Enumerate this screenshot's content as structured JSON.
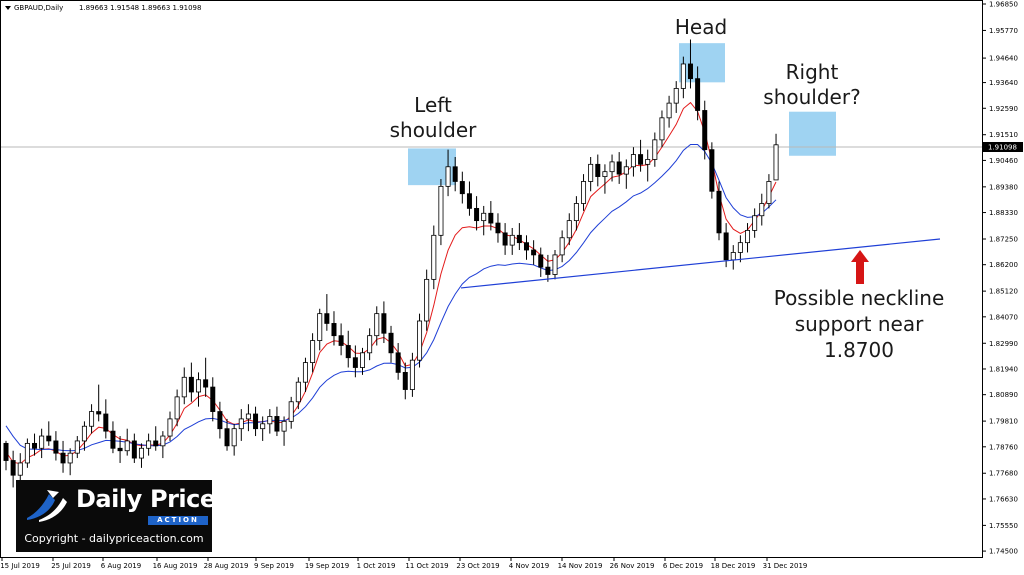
{
  "chart_data": {
    "type": "candlestick",
    "title": "GBPAUD,Daily",
    "ohlc_readout": "1.89663 1.91548 1.89663 1.91098",
    "current_price": 1.91098,
    "current_price_label": "1.91098",
    "ylim": [
      1.7434,
      1.9685
    ],
    "y_tick_labels": [
      "1.96850",
      "1.95770",
      "1.94640",
      "1.93640",
      "1.92590",
      "1.91510",
      "1.90460",
      "1.89380",
      "1.88330",
      "1.87250",
      "1.86200",
      "1.85120",
      "1.84070",
      "1.82990",
      "1.81940",
      "1.80890",
      "1.79810",
      "1.78760",
      "1.77680",
      "1.76630",
      "1.75550",
      "1.74500"
    ],
    "x_tick_labels": [
      "15 Jul 2019",
      "25 Jul 2019",
      "6 Aug 2019",
      "16 Aug 2019",
      "28 Aug 2019",
      "9 Sep 2019",
      "19 Sep 2019",
      "1 Oct 2019",
      "11 Oct 2019",
      "23 Oct 2019",
      "4 Nov 2019",
      "14 Nov 2019",
      "26 Nov 2019",
      "6 Dec 2019",
      "18 Dec 2019",
      "31 Dec 2019"
    ],
    "candles": [
      [
        1.789,
        1.79,
        1.778,
        1.782
      ],
      [
        1.782,
        1.786,
        1.771,
        1.776
      ],
      [
        1.776,
        1.785,
        1.77,
        1.781
      ],
      [
        1.781,
        1.791,
        1.779,
        1.789
      ],
      [
        1.789,
        1.793,
        1.784,
        1.787
      ],
      [
        1.787,
        1.795,
        1.783,
        1.792
      ],
      [
        1.792,
        1.798,
        1.788,
        1.79
      ],
      [
        1.79,
        1.794,
        1.782,
        1.785
      ],
      [
        1.785,
        1.79,
        1.777,
        1.781
      ],
      [
        1.781,
        1.787,
        1.776,
        1.785
      ],
      [
        1.785,
        1.792,
        1.783,
        1.79
      ],
      [
        1.79,
        1.798,
        1.786,
        1.796
      ],
      [
        1.796,
        1.805,
        1.793,
        1.802
      ],
      [
        1.802,
        1.813,
        1.798,
        1.801
      ],
      [
        1.801,
        1.807,
        1.791,
        1.794
      ],
      [
        1.794,
        1.798,
        1.785,
        1.787
      ],
      [
        1.787,
        1.792,
        1.781,
        1.786
      ],
      [
        1.786,
        1.795,
        1.784,
        1.79
      ],
      [
        1.79,
        1.793,
        1.781,
        1.783
      ],
      [
        1.783,
        1.789,
        1.779,
        1.787
      ],
      [
        1.787,
        1.793,
        1.784,
        1.79
      ],
      [
        1.79,
        1.796,
        1.786,
        1.788
      ],
      [
        1.788,
        1.794,
        1.783,
        1.792
      ],
      [
        1.792,
        1.802,
        1.79,
        1.799
      ],
      [
        1.799,
        1.811,
        1.796,
        1.808
      ],
      [
        1.808,
        1.82,
        1.805,
        1.816
      ],
      [
        1.816,
        1.822,
        1.806,
        1.81
      ],
      [
        1.81,
        1.818,
        1.804,
        1.815
      ],
      [
        1.815,
        1.824,
        1.808,
        1.812
      ],
      [
        1.812,
        1.816,
        1.798,
        1.802
      ],
      [
        1.802,
        1.806,
        1.791,
        1.795
      ],
      [
        1.795,
        1.799,
        1.786,
        1.788
      ],
      [
        1.788,
        1.797,
        1.784,
        1.795
      ],
      [
        1.795,
        1.803,
        1.79,
        1.799
      ],
      [
        1.799,
        1.805,
        1.794,
        1.801
      ],
      [
        1.801,
        1.804,
        1.792,
        1.795
      ],
      [
        1.795,
        1.8,
        1.79,
        1.797
      ],
      [
        1.797,
        1.803,
        1.793,
        1.8
      ],
      [
        1.8,
        1.804,
        1.792,
        1.794
      ],
      [
        1.794,
        1.8,
        1.788,
        1.798
      ],
      [
        1.798,
        1.808,
        1.795,
        1.806
      ],
      [
        1.806,
        1.816,
        1.803,
        1.814
      ],
      [
        1.814,
        1.824,
        1.81,
        1.822
      ],
      [
        1.822,
        1.834,
        1.818,
        1.831
      ],
      [
        1.831,
        1.844,
        1.827,
        1.842
      ],
      [
        1.842,
        1.85,
        1.835,
        1.838
      ],
      [
        1.838,
        1.843,
        1.829,
        1.833
      ],
      [
        1.833,
        1.838,
        1.825,
        1.829
      ],
      [
        1.829,
        1.835,
        1.82,
        1.824
      ],
      [
        1.824,
        1.829,
        1.816,
        1.82
      ],
      [
        1.82,
        1.828,
        1.817,
        1.826
      ],
      [
        1.826,
        1.836,
        1.823,
        1.833
      ],
      [
        1.833,
        1.845,
        1.829,
        1.842
      ],
      [
        1.842,
        1.847,
        1.83,
        1.834
      ],
      [
        1.834,
        1.837,
        1.822,
        1.826
      ],
      [
        1.826,
        1.83,
        1.815,
        1.818
      ],
      [
        1.818,
        1.822,
        1.807,
        1.811
      ],
      [
        1.811,
        1.826,
        1.808,
        1.823
      ],
      [
        1.823,
        1.842,
        1.82,
        1.839
      ],
      [
        1.839,
        1.86,
        1.835,
        1.856
      ],
      [
        1.856,
        1.878,
        1.852,
        1.874
      ],
      [
        1.874,
        1.897,
        1.87,
        1.894
      ],
      [
        1.894,
        1.909,
        1.89,
        1.902
      ],
      [
        1.902,
        1.906,
        1.892,
        1.896
      ],
      [
        1.896,
        1.9,
        1.887,
        1.891
      ],
      [
        1.891,
        1.896,
        1.882,
        1.885
      ],
      [
        1.885,
        1.89,
        1.876,
        1.88
      ],
      [
        1.88,
        1.886,
        1.874,
        1.883
      ],
      [
        1.883,
        1.888,
        1.876,
        1.879
      ],
      [
        1.879,
        1.883,
        1.871,
        1.875
      ],
      [
        1.875,
        1.879,
        1.866,
        1.87
      ],
      [
        1.87,
        1.877,
        1.866,
        1.874
      ],
      [
        1.874,
        1.879,
        1.868,
        1.871
      ],
      [
        1.871,
        1.874,
        1.864,
        1.868
      ],
      [
        1.868,
        1.872,
        1.862,
        1.866
      ],
      [
        1.866,
        1.869,
        1.857,
        1.861
      ],
      [
        1.861,
        1.866,
        1.855,
        1.858
      ],
      [
        1.858,
        1.868,
        1.856,
        1.866
      ],
      [
        1.866,
        1.876,
        1.863,
        1.873
      ],
      [
        1.873,
        1.883,
        1.87,
        1.88
      ],
      [
        1.88,
        1.89,
        1.876,
        1.887
      ],
      [
        1.887,
        1.899,
        1.884,
        1.896
      ],
      [
        1.896,
        1.906,
        1.892,
        1.903
      ],
      [
        1.903,
        1.907,
        1.894,
        1.898
      ],
      [
        1.898,
        1.903,
        1.891,
        1.9
      ],
      [
        1.9,
        1.907,
        1.896,
        1.904
      ],
      [
        1.904,
        1.908,
        1.895,
        1.899
      ],
      [
        1.899,
        1.905,
        1.893,
        1.902
      ],
      [
        1.902,
        1.91,
        1.898,
        1.907
      ],
      [
        1.907,
        1.913,
        1.9,
        1.903
      ],
      [
        1.903,
        1.909,
        1.896,
        1.905
      ],
      [
        1.905,
        1.916,
        1.902,
        1.913
      ],
      [
        1.913,
        1.925,
        1.91,
        1.922
      ],
      [
        1.922,
        1.931,
        1.918,
        1.928
      ],
      [
        1.928,
        1.937,
        1.924,
        1.934
      ],
      [
        1.934,
        1.947,
        1.93,
        1.944
      ],
      [
        1.944,
        1.954,
        1.934,
        1.938
      ],
      [
        1.938,
        1.943,
        1.921,
        1.925
      ],
      [
        1.925,
        1.929,
        1.905,
        1.909
      ],
      [
        1.909,
        1.912,
        1.889,
        1.892
      ],
      [
        1.892,
        1.896,
        1.872,
        1.875
      ],
      [
        1.875,
        1.879,
        1.861,
        1.864
      ],
      [
        1.864,
        1.87,
        1.86,
        1.867
      ],
      [
        1.867,
        1.874,
        1.863,
        1.871
      ],
      [
        1.871,
        1.879,
        1.867,
        1.876
      ],
      [
        1.876,
        1.885,
        1.873,
        1.882
      ],
      [
        1.882,
        1.891,
        1.878,
        1.887
      ],
      [
        1.887,
        1.899,
        1.885,
        1.896
      ],
      [
        1.89663,
        1.91548,
        1.89663,
        1.91098
      ]
    ],
    "series": [
      {
        "name": "",
        "color": "#e31b1b",
        "values": [
          1.7855,
          1.7813,
          1.7807,
          1.7831,
          1.7845,
          1.7865,
          1.7868,
          1.7858,
          1.7839,
          1.7841,
          1.7861,
          1.7893,
          1.7932,
          1.7956,
          1.7951,
          1.7926,
          1.7908,
          1.7903,
          1.7886,
          1.788,
          1.7884,
          1.7882,
          1.7891,
          1.7924,
          1.7972,
          1.8033,
          1.8054,
          1.8081,
          1.8088,
          1.8065,
          1.8026,
          1.7981,
          1.7967,
          1.7974,
          1.7986,
          1.7978,
          1.7978,
          1.7984,
          1.7974,
          1.7977,
          1.8002,
          1.8045,
          1.8103,
          1.8177,
          1.8261,
          1.8296,
          1.8309,
          1.8306,
          1.8286,
          1.8259,
          1.8257,
          1.8277,
          1.8315,
          1.8323,
          1.8301,
          1.8262,
          1.8206,
          1.8213,
          1.8261,
          1.8343,
          1.8454,
          1.8582,
          1.8679,
          1.8741,
          1.8771,
          1.8775,
          1.877,
          1.8778,
          1.8778,
          1.8767,
          1.8742,
          1.8736,
          1.8722,
          1.8703,
          1.8685,
          1.8659,
          1.8634,
          1.864,
          1.8669,
          1.8712,
          1.8764,
          1.8832,
          1.8898,
          1.8925,
          1.895,
          1.8977,
          1.8983,
          1.9,
          1.9027,
          1.9024,
          1.9029,
          1.9058,
          1.9101,
          1.9146,
          1.9193,
          1.9258,
          1.9282,
          1.9246,
          1.9162,
          1.9043,
          1.8908,
          1.8806,
          1.8765,
          1.8748,
          1.8762,
          1.88,
          1.8841,
          1.8898,
          1.8958
        ]
      },
      {
        "name": "",
        "color": "#1f3fd6",
        "values": [
          1.7962,
          1.7919,
          1.7882,
          1.7867,
          1.7866,
          1.7865,
          1.7866,
          1.7865,
          1.7861,
          1.786,
          1.7861,
          1.787,
          1.7884,
          1.7893,
          1.7902,
          1.7901,
          1.7899,
          1.7895,
          1.7888,
          1.7884,
          1.788,
          1.788,
          1.7883,
          1.7896,
          1.7918,
          1.7947,
          1.7962,
          1.7978,
          1.799,
          1.7992,
          1.7986,
          1.7974,
          1.7966,
          1.7969,
          1.7974,
          1.7974,
          1.7978,
          1.7985,
          1.7983,
          1.7983,
          1.7993,
          1.8012,
          1.804,
          1.8076,
          1.8119,
          1.8148,
          1.8168,
          1.8181,
          1.8185,
          1.8183,
          1.8183,
          1.819,
          1.8206,
          1.8217,
          1.8218,
          1.8212,
          1.8198,
          1.8201,
          1.8222,
          1.826,
          1.8314,
          1.8383,
          1.8449,
          1.85,
          1.8541,
          1.8568,
          1.8583,
          1.8603,
          1.8614,
          1.862,
          1.8617,
          1.8623,
          1.8626,
          1.8623,
          1.8619,
          1.8607,
          1.8596,
          1.8599,
          1.8613,
          1.8637,
          1.867,
          1.8709,
          1.8751,
          1.8782,
          1.881,
          1.8838,
          1.8856,
          1.8877,
          1.8901,
          1.8913,
          1.8931,
          1.8955,
          1.8982,
          1.9011,
          1.9045,
          1.9087,
          1.9111,
          1.9111,
          1.9083,
          1.9034,
          1.8965,
          1.8894,
          1.8852,
          1.8824,
          1.8813,
          1.8816,
          1.883,
          1.8856,
          1.8885
        ]
      }
    ],
    "neckline": {
      "points": [
        [
          1.8525,
          1.8525
        ],
        [
          1.8725,
          1.8725
        ]
      ],
      "color": "#1f3fd6"
    },
    "annotations": [
      {
        "lines": [
          "Left",
          "shoulder"
        ]
      },
      {
        "lines": [
          "Head"
        ]
      },
      {
        "lines": [
          "Right",
          "shoulder?"
        ]
      },
      {
        "lines": [
          "Possible neckline",
          "support near",
          "1.8700"
        ]
      }
    ],
    "highlights": [
      {
        "name": "left-shoulder-highlight",
        "price_low": 1.8945,
        "price_high": 1.9095,
        "color": "#8ecbf0"
      },
      {
        "name": "head-highlight",
        "price_low": 1.9365,
        "price_high": 1.9525,
        "color": "#8ecbf0"
      },
      {
        "name": "right-shoulder-highlight",
        "price_low": 1.9065,
        "price_high": 1.9245,
        "color": "#8ecbf0"
      }
    ],
    "arrow_color": "#d61515",
    "grid": false
  },
  "logo": {
    "brand_part1": "Daily",
    "brand_part2": "Price",
    "brand_sub": "ACTION",
    "copyright": "Copyright - dailypriceaction.com"
  }
}
